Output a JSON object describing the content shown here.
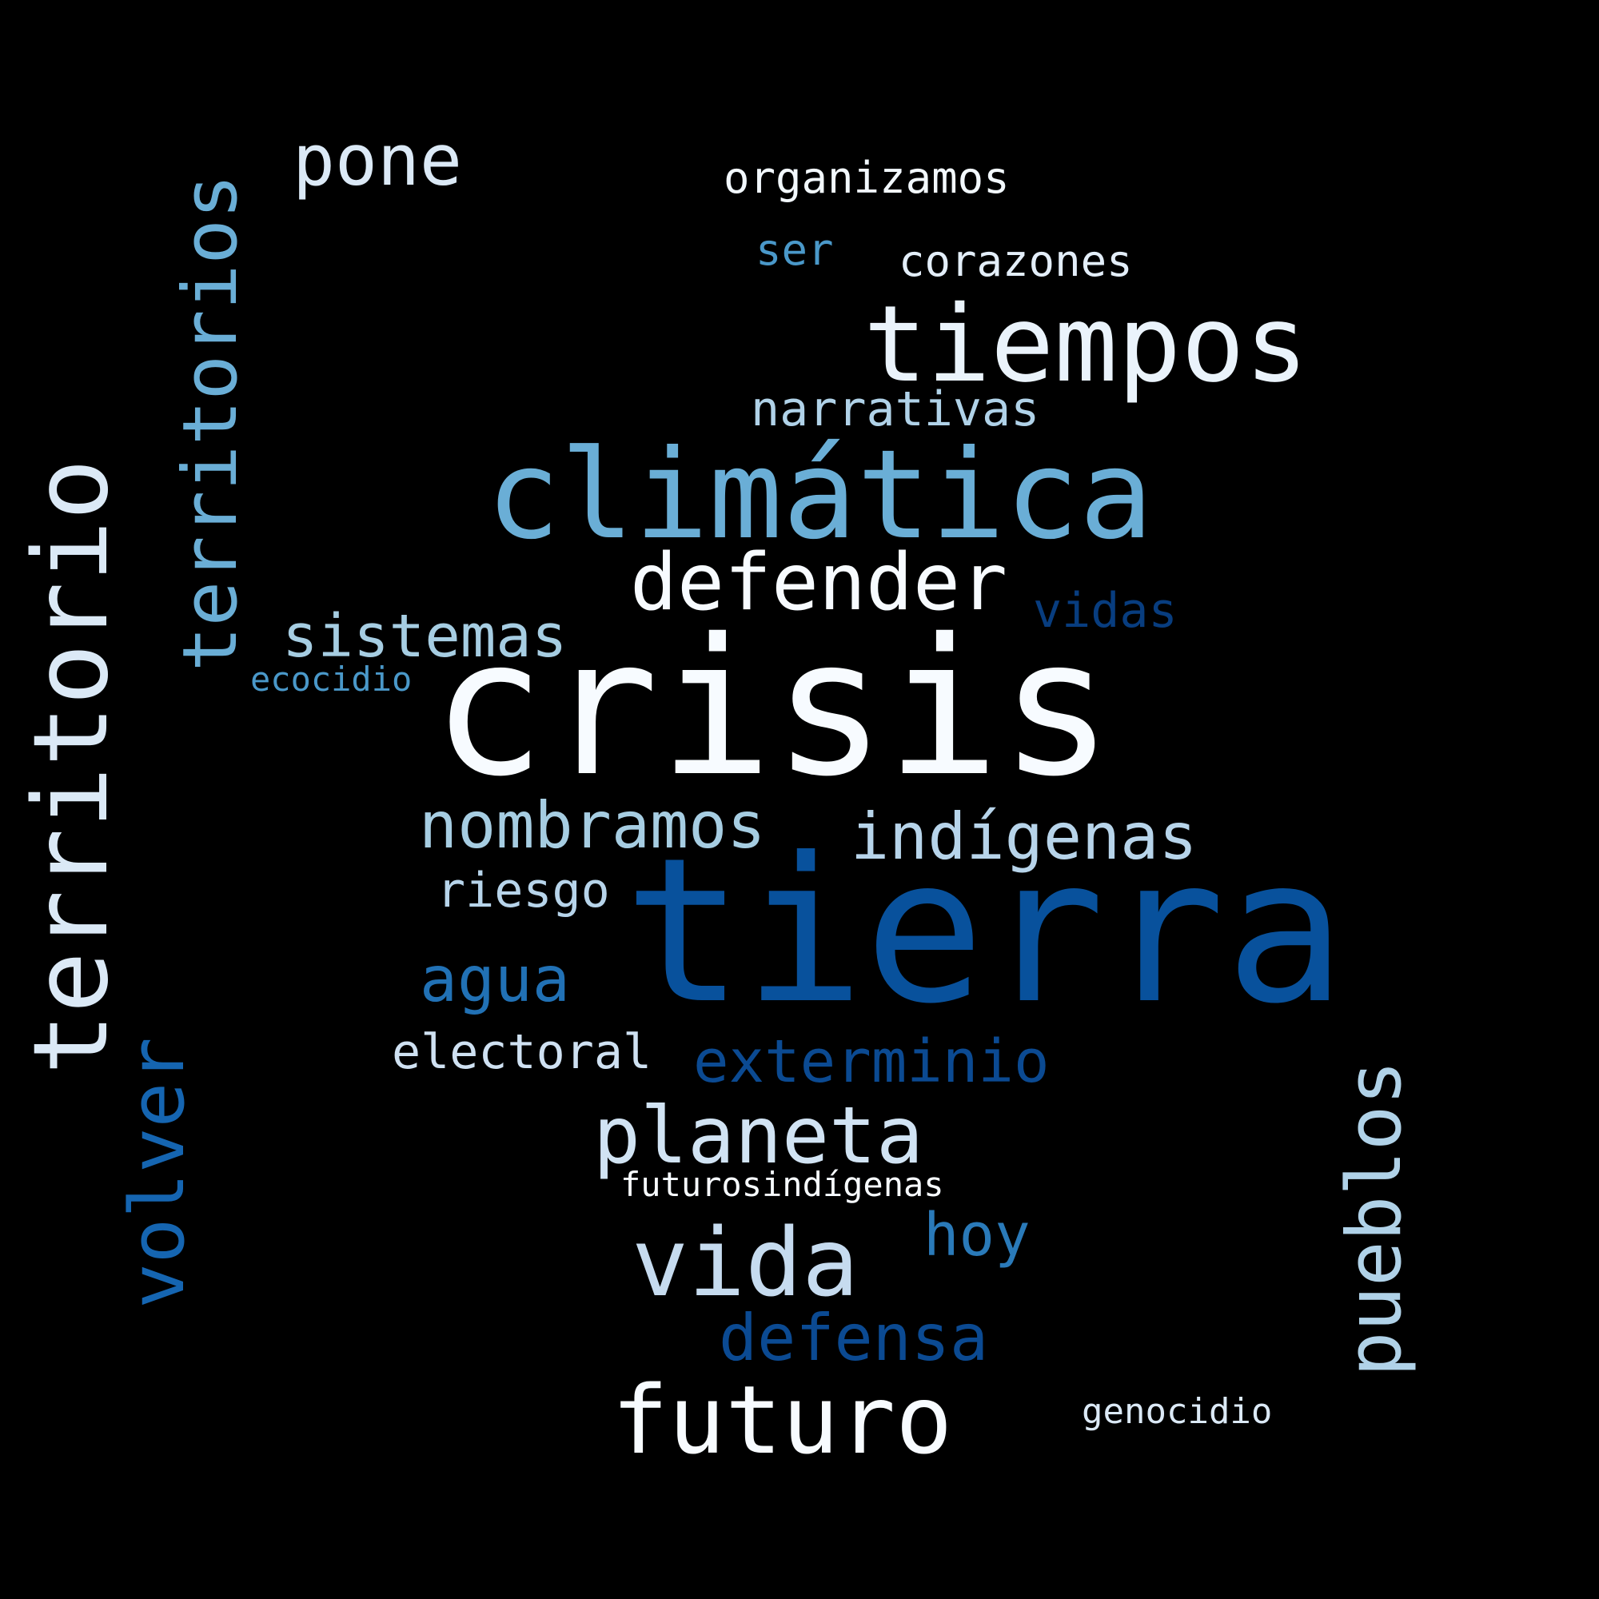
{
  "words": {
    "tierra": {
      "text": "tierra",
      "color": "#08519c"
    },
    "crisis": {
      "text": "crisis",
      "color": "#f7fbff"
    },
    "territorio": {
      "text": "territorio",
      "color": "#dbe9f6"
    },
    "climatica": {
      "text": "climática",
      "color": "#6aaed6"
    },
    "tiempos": {
      "text": "tiempos",
      "color": "#eaf3fb"
    },
    "territorios": {
      "text": "territorios",
      "color": "#6aaed6"
    },
    "volver": {
      "text": "volver",
      "color": "#1565b1"
    },
    "pueblos": {
      "text": "pueblos",
      "color": "#b0d2e8"
    },
    "defender": {
      "text": "defender",
      "color": "#f7fbff"
    },
    "vida": {
      "text": "vida",
      "color": "#c6dbef"
    },
    "futuro": {
      "text": "futuro",
      "color": "#f7fbff"
    },
    "planeta": {
      "text": "planeta",
      "color": "#d1e3f3"
    },
    "pone": {
      "text": "pone",
      "color": "#dbe9f6"
    },
    "nombramos": {
      "text": "nombramos",
      "color": "#a6cde2"
    },
    "indigenas": {
      "text": "indígenas",
      "color": "#b7d4ea"
    },
    "exterminio": {
      "text": "exterminio",
      "color": "#0b4a92"
    },
    "defensa": {
      "text": "defensa",
      "color": "#0b4a92"
    },
    "agua": {
      "text": "agua",
      "color": "#2171b5"
    },
    "sistemas": {
      "text": "sistemas",
      "color": "#a6cde2"
    },
    "hoy": {
      "text": "hoy",
      "color": "#2a7ab9"
    },
    "narrativas": {
      "text": "narrativas",
      "color": "#b0d2e8"
    },
    "vidas": {
      "text": "vidas",
      "color": "#083d7f"
    },
    "electoral": {
      "text": "electoral",
      "color": "#cfe1f2"
    },
    "riesgo": {
      "text": "riesgo",
      "color": "#b7d4ea"
    },
    "corazones": {
      "text": "corazones",
      "color": "#e3eef9"
    },
    "organizamos": {
      "text": "organizamos",
      "color": "#f2f8fd"
    },
    "ser": {
      "text": "ser",
      "color": "#4a98c9"
    },
    "ecocidio": {
      "text": "ecocidio",
      "color": "#4a98c9"
    },
    "futurosindigenas": {
      "text": "futurosindígenas",
      "color": "#f7fbff"
    },
    "genocidio": {
      "text": "genocidio",
      "color": "#dbe9f6"
    }
  },
  "background_color": "#000000"
}
